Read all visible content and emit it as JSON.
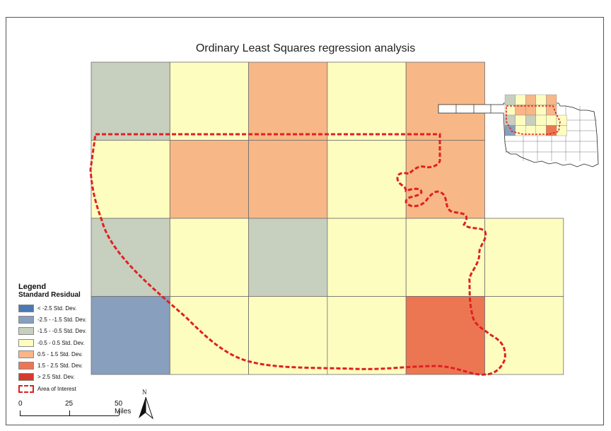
{
  "map": {
    "title": "Ordinary Least Squares regression analysis",
    "colors": {
      "lt_neg25": "#4a78b4",
      "neg25_neg15": "#889fbd",
      "neg15_neg05": "#c7cfbf",
      "neg05_05": "#fefdc0",
      "p05_15": "#f8b786",
      "p15_25": "#ec7652",
      "gt25": "#d53a2a",
      "aoi": "#e02020"
    },
    "grid_residual_classes": [
      [
        "neg15_neg05",
        "neg05_05",
        "p05_15",
        "neg05_05",
        "p05_15",
        null
      ],
      [
        "neg05_05",
        "p05_15",
        "p05_15",
        "neg05_05",
        "p05_15",
        null
      ],
      [
        "neg15_neg05",
        "neg05_05",
        "neg15_neg05",
        "neg05_05",
        "neg05_05",
        "neg05_05"
      ],
      [
        "neg25_neg15",
        "neg05_05",
        "neg05_05",
        "neg05_05",
        "p15_25",
        "neg05_05"
      ]
    ]
  },
  "legend": {
    "title": "Legend",
    "subtitle": "Standard Residual",
    "items": [
      {
        "label": "< -2.5 Std. Dev.",
        "color_key": "lt_neg25"
      },
      {
        "label": "-2.5 - -1.5 Std. Dev.",
        "color_key": "neg25_neg15"
      },
      {
        "label": "-1.5 - -0.5 Std. Dev.",
        "color_key": "neg15_neg05"
      },
      {
        "label": "-0.5 - 0.5 Std. Dev.",
        "color_key": "neg05_05"
      },
      {
        "label": "0.5 - 1.5 Std. Dev.",
        "color_key": "p05_15"
      },
      {
        "label": "1.5 - 2.5 Std. Dev.",
        "color_key": "p15_25"
      },
      {
        "label": "> 2.5 Std. Dev.",
        "color_key": "gt25"
      }
    ],
    "aoi_label": "Area of Interest"
  },
  "scalebar": {
    "labels": [
      "0",
      "25",
      "50 Miles"
    ]
  },
  "north_arrow": {
    "label": "N"
  }
}
